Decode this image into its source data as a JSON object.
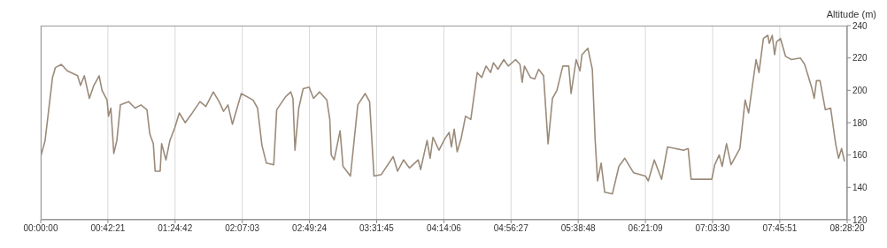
{
  "chart_data": {
    "type": "line",
    "ylabel": "Altitude (m)",
    "xlim": [
      0,
      8.47222
    ],
    "ylim": [
      120,
      240
    ],
    "xticks": [
      {
        "value": 0,
        "label": "00:00:00"
      },
      {
        "value": 0.705833,
        "label": "00:42:21"
      },
      {
        "value": 1.411667,
        "label": "01:24:42"
      },
      {
        "value": 2.1175,
        "label": "02:07:03"
      },
      {
        "value": 2.823333,
        "label": "02:49:24"
      },
      {
        "value": 3.529167,
        "label": "03:31:45"
      },
      {
        "value": 4.235,
        "label": "04:14:06"
      },
      {
        "value": 4.940833,
        "label": "04:56:27"
      },
      {
        "value": 5.646667,
        "label": "05:38:48"
      },
      {
        "value": 6.3525,
        "label": "06:21:09"
      },
      {
        "value": 7.058333,
        "label": "07:03:30"
      },
      {
        "value": 7.764167,
        "label": "07:45:51"
      },
      {
        "value": 8.47222,
        "label": "08:28:20"
      }
    ],
    "yticks": [
      120,
      140,
      160,
      180,
      200,
      220,
      240
    ],
    "grid": "x",
    "legend": false,
    "marker": "none",
    "line_style": "solid",
    "series": [
      {
        "color": "#9b8b7a",
        "x": [
          0,
          0.046,
          0.124,
          0.154,
          0.217,
          0.279,
          0.387,
          0.418,
          0.458,
          0.511,
          0.558,
          0.614,
          0.644,
          0.697,
          0.712,
          0.737,
          0.768,
          0.8,
          0.837,
          0.923,
          0.991,
          1.053,
          1.116,
          1.146,
          1.183,
          1.202,
          1.255,
          1.27,
          1.316,
          1.357,
          1.409,
          1.456,
          1.518,
          1.58,
          1.673,
          1.735,
          1.813,
          1.874,
          1.921,
          1.967,
          2.014,
          2.107,
          2.231,
          2.278,
          2.324,
          2.371,
          2.448,
          2.479,
          2.572,
          2.627,
          2.65,
          2.671,
          2.711,
          2.757,
          2.82,
          2.866,
          2.929,
          3.006,
          3.037,
          3.052,
          3.083,
          3.145,
          3.176,
          3.254,
          3.331,
          3.408,
          3.455,
          3.501,
          3.579,
          3.703,
          3.749,
          3.812,
          3.873,
          3.966,
          3.991,
          4.059,
          4.091,
          4.121,
          4.184,
          4.245,
          4.291,
          4.314,
          4.344,
          4.375,
          4.416,
          4.463,
          4.518,
          4.586,
          4.633,
          4.679,
          4.726,
          4.756,
          4.803,
          4.865,
          4.912,
          4.989,
          5.035,
          5.058,
          5.082,
          5.144,
          5.19,
          5.231,
          5.283,
          5.33,
          5.376,
          5.423,
          5.485,
          5.547,
          5.572,
          5.625,
          5.665,
          5.686,
          5.748,
          5.795,
          5.825,
          5.85,
          5.888,
          5.925,
          6.006,
          6.074,
          6.136,
          6.229,
          6.353,
          6.383,
          6.446,
          6.523,
          6.585,
          6.755,
          6.802,
          6.833,
          7.05,
          7.081,
          7.128,
          7.159,
          7.205,
          7.252,
          7.345,
          7.4,
          7.437,
          7.515,
          7.546,
          7.592,
          7.639,
          7.654,
          7.685,
          7.71,
          7.731,
          7.772,
          7.825,
          7.887,
          7.98,
          8.026,
          8.103,
          8.126,
          8.15,
          8.187,
          8.243,
          8.299,
          8.351,
          8.382,
          8.414,
          8.445
        ],
        "values": [
          159,
          169,
          208,
          214,
          216,
          212,
          209,
          203,
          209,
          195,
          203,
          209,
          200,
          194,
          184,
          189,
          161,
          169,
          191,
          193,
          189,
          191,
          188,
          173,
          167,
          150,
          150,
          167,
          157,
          169,
          177,
          186,
          180,
          185,
          193,
          190,
          199,
          193,
          187,
          191,
          179,
          198,
          194,
          189,
          166,
          155,
          154,
          188,
          196,
          199,
          195,
          163,
          189,
          201,
          202,
          195,
          199,
          194,
          182,
          160,
          157,
          175,
          153,
          147,
          191,
          198,
          193,
          147,
          148,
          159,
          150,
          157,
          152,
          157,
          151,
          169,
          158,
          171,
          163,
          170,
          174,
          165,
          176,
          162,
          170,
          184,
          182,
          211,
          208,
          215,
          211,
          217,
          213,
          219,
          215,
          219,
          216,
          205,
          215,
          208,
          207,
          213,
          209,
          167,
          195,
          200,
          215,
          215,
          198,
          219,
          212,
          222,
          226,
          213,
          169,
          144,
          155,
          137,
          136,
          153,
          158,
          149,
          147,
          144,
          157,
          145,
          165,
          163,
          164,
          145,
          145,
          154,
          160,
          153,
          167,
          154,
          164,
          194,
          186,
          219,
          211,
          232,
          234,
          229,
          234,
          222,
          230,
          232,
          221,
          219,
          220,
          216,
          201,
          195,
          206,
          206,
          188,
          189,
          167,
          158,
          164,
          156
        ]
      }
    ]
  }
}
